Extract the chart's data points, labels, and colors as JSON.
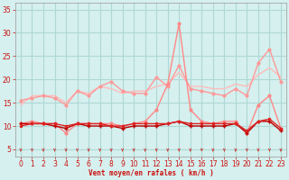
{
  "x": [
    0,
    1,
    2,
    3,
    4,
    5,
    6,
    7,
    8,
    9,
    10,
    11,
    12,
    13,
    14,
    15,
    16,
    17,
    18,
    19,
    20,
    21,
    22,
    23
  ],
  "line1": [
    14.5,
    16.5,
    16.5,
    16.5,
    15.0,
    17.5,
    17.0,
    18.5,
    18.0,
    17.0,
    17.5,
    17.5,
    18.5,
    19.0,
    21.5,
    18.5,
    18.5,
    18.0,
    18.0,
    19.0,
    18.5,
    21.0,
    22.5,
    20.5
  ],
  "line2": [
    15.5,
    16.0,
    16.5,
    16.0,
    14.5,
    17.5,
    16.5,
    18.5,
    19.5,
    17.5,
    17.0,
    17.0,
    20.5,
    18.5,
    23.0,
    18.0,
    17.5,
    17.0,
    16.5,
    18.0,
    16.5,
    23.5,
    26.5,
    19.5
  ],
  "line3": [
    10.5,
    11.0,
    10.5,
    10.5,
    8.5,
    10.5,
    10.5,
    10.5,
    10.5,
    10.0,
    10.5,
    11.0,
    13.5,
    19.0,
    32.0,
    13.5,
    11.0,
    10.5,
    11.0,
    11.0,
    8.5,
    14.5,
    16.5,
    9.5
  ],
  "line4": [
    10.5,
    10.5,
    10.5,
    10.0,
    9.5,
    10.5,
    10.0,
    10.0,
    10.0,
    9.5,
    10.0,
    10.0,
    10.0,
    10.5,
    11.0,
    10.0,
    10.0,
    10.0,
    10.0,
    10.5,
    8.5,
    11.0,
    11.0,
    9.0
  ],
  "line5": [
    10.0,
    10.5,
    10.5,
    10.5,
    10.0,
    10.5,
    10.5,
    10.5,
    10.0,
    10.0,
    10.5,
    10.5,
    10.5,
    10.5,
    11.0,
    10.5,
    10.5,
    10.5,
    10.5,
    10.5,
    9.0,
    11.0,
    11.5,
    9.5
  ],
  "color_line1": "#ffbbbb",
  "color_line2": "#ff9999",
  "color_line3": "#ff8888",
  "color_line4": "#bb0000",
  "color_line5": "#dd2222",
  "color_ticks": "#cc3333",
  "bg_color": "#d5f0ee",
  "grid_color": "#afd8d5",
  "axis_label": "Vent moyen/en rafales ( km/h )",
  "ylim": [
    3.5,
    36.5
  ],
  "yticks": [
    5,
    10,
    15,
    20,
    25,
    30,
    35
  ],
  "xticks": [
    0,
    1,
    2,
    3,
    4,
    5,
    6,
    7,
    8,
    9,
    10,
    11,
    12,
    13,
    14,
    15,
    16,
    17,
    18,
    19,
    20,
    21,
    22,
    23
  ]
}
